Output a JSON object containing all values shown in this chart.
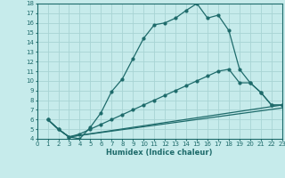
{
  "xlabel": "Humidex (Indice chaleur)",
  "xlim": [
    0,
    23
  ],
  "ylim": [
    4,
    18
  ],
  "yticks": [
    4,
    5,
    6,
    7,
    8,
    9,
    10,
    11,
    12,
    13,
    14,
    15,
    16,
    17,
    18
  ],
  "xticks": [
    0,
    1,
    2,
    3,
    4,
    5,
    6,
    7,
    8,
    9,
    10,
    11,
    12,
    13,
    14,
    15,
    16,
    17,
    18,
    19,
    20,
    21,
    22,
    23
  ],
  "bg_color": "#c6ebeb",
  "grid_color": "#a8d4d4",
  "line_color": "#1e6b6b",
  "line1_x": [
    1,
    2,
    3,
    4,
    5,
    6,
    7,
    8,
    9,
    10,
    11,
    12,
    13,
    14,
    15,
    16,
    17,
    18,
    19,
    20,
    21,
    22,
    23
  ],
  "line1_y": [
    6.0,
    5.0,
    4.2,
    4.0,
    5.2,
    6.7,
    8.9,
    10.2,
    12.3,
    14.4,
    15.8,
    16.0,
    16.5,
    17.3,
    18.0,
    16.5,
    16.8,
    15.2,
    11.2,
    9.8,
    8.8,
    7.5,
    7.5
  ],
  "line2_x": [
    1,
    2,
    3,
    4,
    5,
    6,
    7,
    8,
    9,
    10,
    11,
    12,
    13,
    14,
    15,
    16,
    17,
    18,
    19,
    20,
    21,
    22,
    23
  ],
  "line2_y": [
    6.0,
    5.0,
    4.2,
    4.5,
    5.0,
    5.5,
    6.0,
    6.5,
    7.0,
    7.5,
    8.0,
    8.5,
    9.0,
    9.5,
    10.0,
    10.5,
    11.0,
    11.2,
    9.8,
    9.8,
    8.8,
    7.5,
    7.5
  ],
  "line3_x": [
    1,
    2,
    3,
    23
  ],
  "line3_y": [
    6.0,
    5.0,
    4.2,
    7.5
  ],
  "line4_x": [
    1,
    2,
    3,
    23
  ],
  "line4_y": [
    6.0,
    5.0,
    4.2,
    7.2
  ]
}
